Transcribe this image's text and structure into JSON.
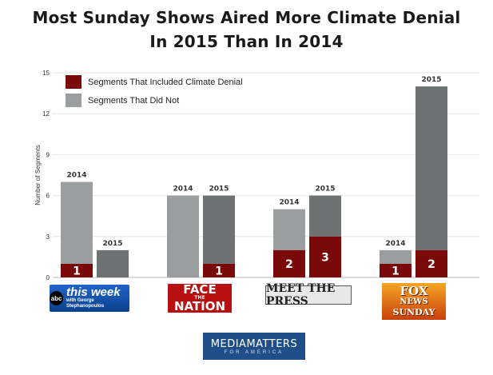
{
  "title_line1": "Most Sunday Shows Aired More Climate Denial",
  "title_line2": "In 2015 Than In 2014",
  "colors": {
    "denial": "#7a0a0a",
    "not": "#9a9e9e",
    "not_2015": "#6e7273",
    "axis_text": "#333333"
  },
  "logos": {
    "this_week": {
      "main": "this week",
      "sub": "with George Stephanopoulos",
      "network": "abc"
    },
    "face_nation": {
      "line1": "FACE",
      "line2": "NATION",
      "small": "THE"
    },
    "meet_press": {
      "text": "MEET THE PRESS"
    },
    "fox_sunday": {
      "line1": "FOX",
      "line2": "NEWS",
      "line3": "SUNDAY"
    },
    "media_matters": {
      "main": "MEDIAMATTERS",
      "sub": "FOR AMERICA"
    }
  },
  "chart_data": {
    "type": "bar",
    "stacked": true,
    "ylabel": "Number of Segments",
    "ylim": [
      0,
      15
    ],
    "yticks": [
      0,
      3,
      6,
      9,
      12,
      15
    ],
    "legend": [
      {
        "label": "Segments That Included Climate Denial",
        "key": "denial"
      },
      {
        "label": "Segments That Did Not",
        "key": "not"
      }
    ],
    "legend_position": "top-left",
    "groups": [
      {
        "show": "This Week",
        "bars": [
          {
            "year": "2014",
            "denial": 1,
            "not": 6
          },
          {
            "year": "2015",
            "denial": 0,
            "not": 2
          }
        ]
      },
      {
        "show": "Face the Nation",
        "bars": [
          {
            "year": "2014",
            "denial": 0,
            "not": 6
          },
          {
            "year": "2015",
            "denial": 1,
            "not": 5
          }
        ]
      },
      {
        "show": "Meet the Press",
        "bars": [
          {
            "year": "2014",
            "denial": 2,
            "not": 3
          },
          {
            "year": "2015",
            "denial": 3,
            "not": 3
          }
        ]
      },
      {
        "show": "Fox News Sunday",
        "bars": [
          {
            "year": "2014",
            "denial": 1,
            "not": 1
          },
          {
            "year": "2015",
            "denial": 2,
            "not": 12
          }
        ]
      }
    ]
  }
}
